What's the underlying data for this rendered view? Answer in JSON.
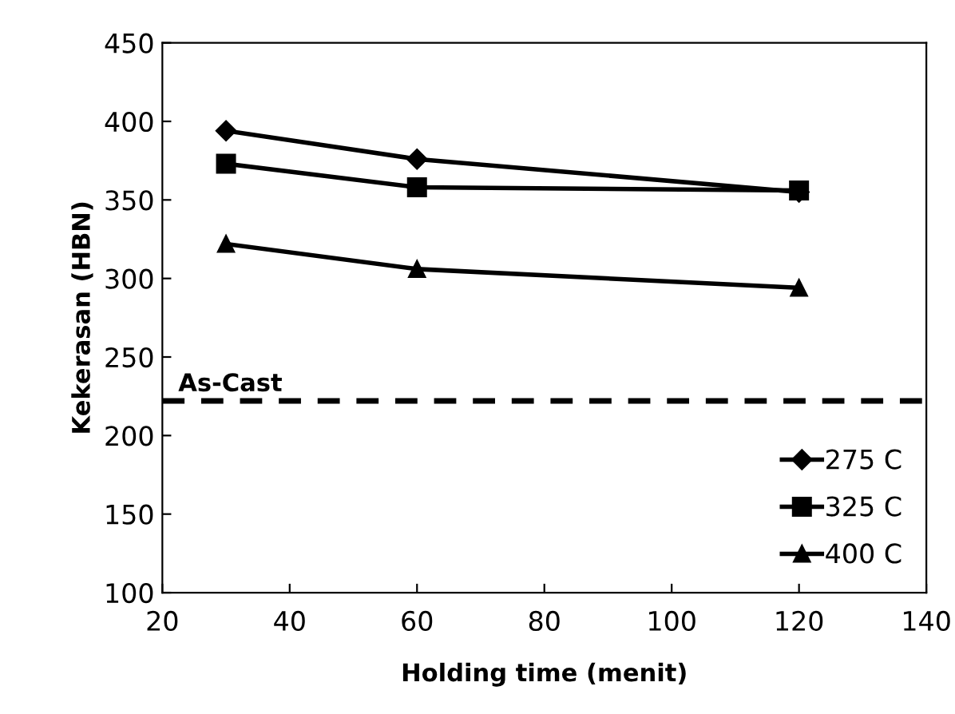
{
  "chart_data": {
    "type": "line",
    "xlabel": "Holding time (menit)",
    "ylabel": "Kekerasan (HBN)",
    "x": [
      30,
      60,
      120
    ],
    "series": [
      {
        "name": "275 C",
        "color": "#000000",
        "values": [
          394,
          376,
          355
        ],
        "marker": "diamond"
      },
      {
        "name": "325 C",
        "color": "#000000",
        "values": [
          373,
          358,
          356
        ],
        "marker": "square"
      },
      {
        "name": "400 C",
        "color": "#000000",
        "values": [
          322,
          306,
          294
        ],
        "marker": "triangle"
      }
    ],
    "xlim": [
      20,
      140
    ],
    "xticks": [
      20,
      40,
      60,
      80,
      100,
      120,
      140
    ],
    "ylim": [
      100,
      450
    ],
    "yticks": [
      100,
      150,
      200,
      250,
      300,
      350,
      400,
      450
    ],
    "ref_lines": [
      {
        "axis": "y",
        "value": 222,
        "label": "As-Cast",
        "color": "#000000",
        "line_style": "dashed"
      }
    ],
    "grid": false,
    "legend": "bottom right",
    "line_style": "solid"
  }
}
